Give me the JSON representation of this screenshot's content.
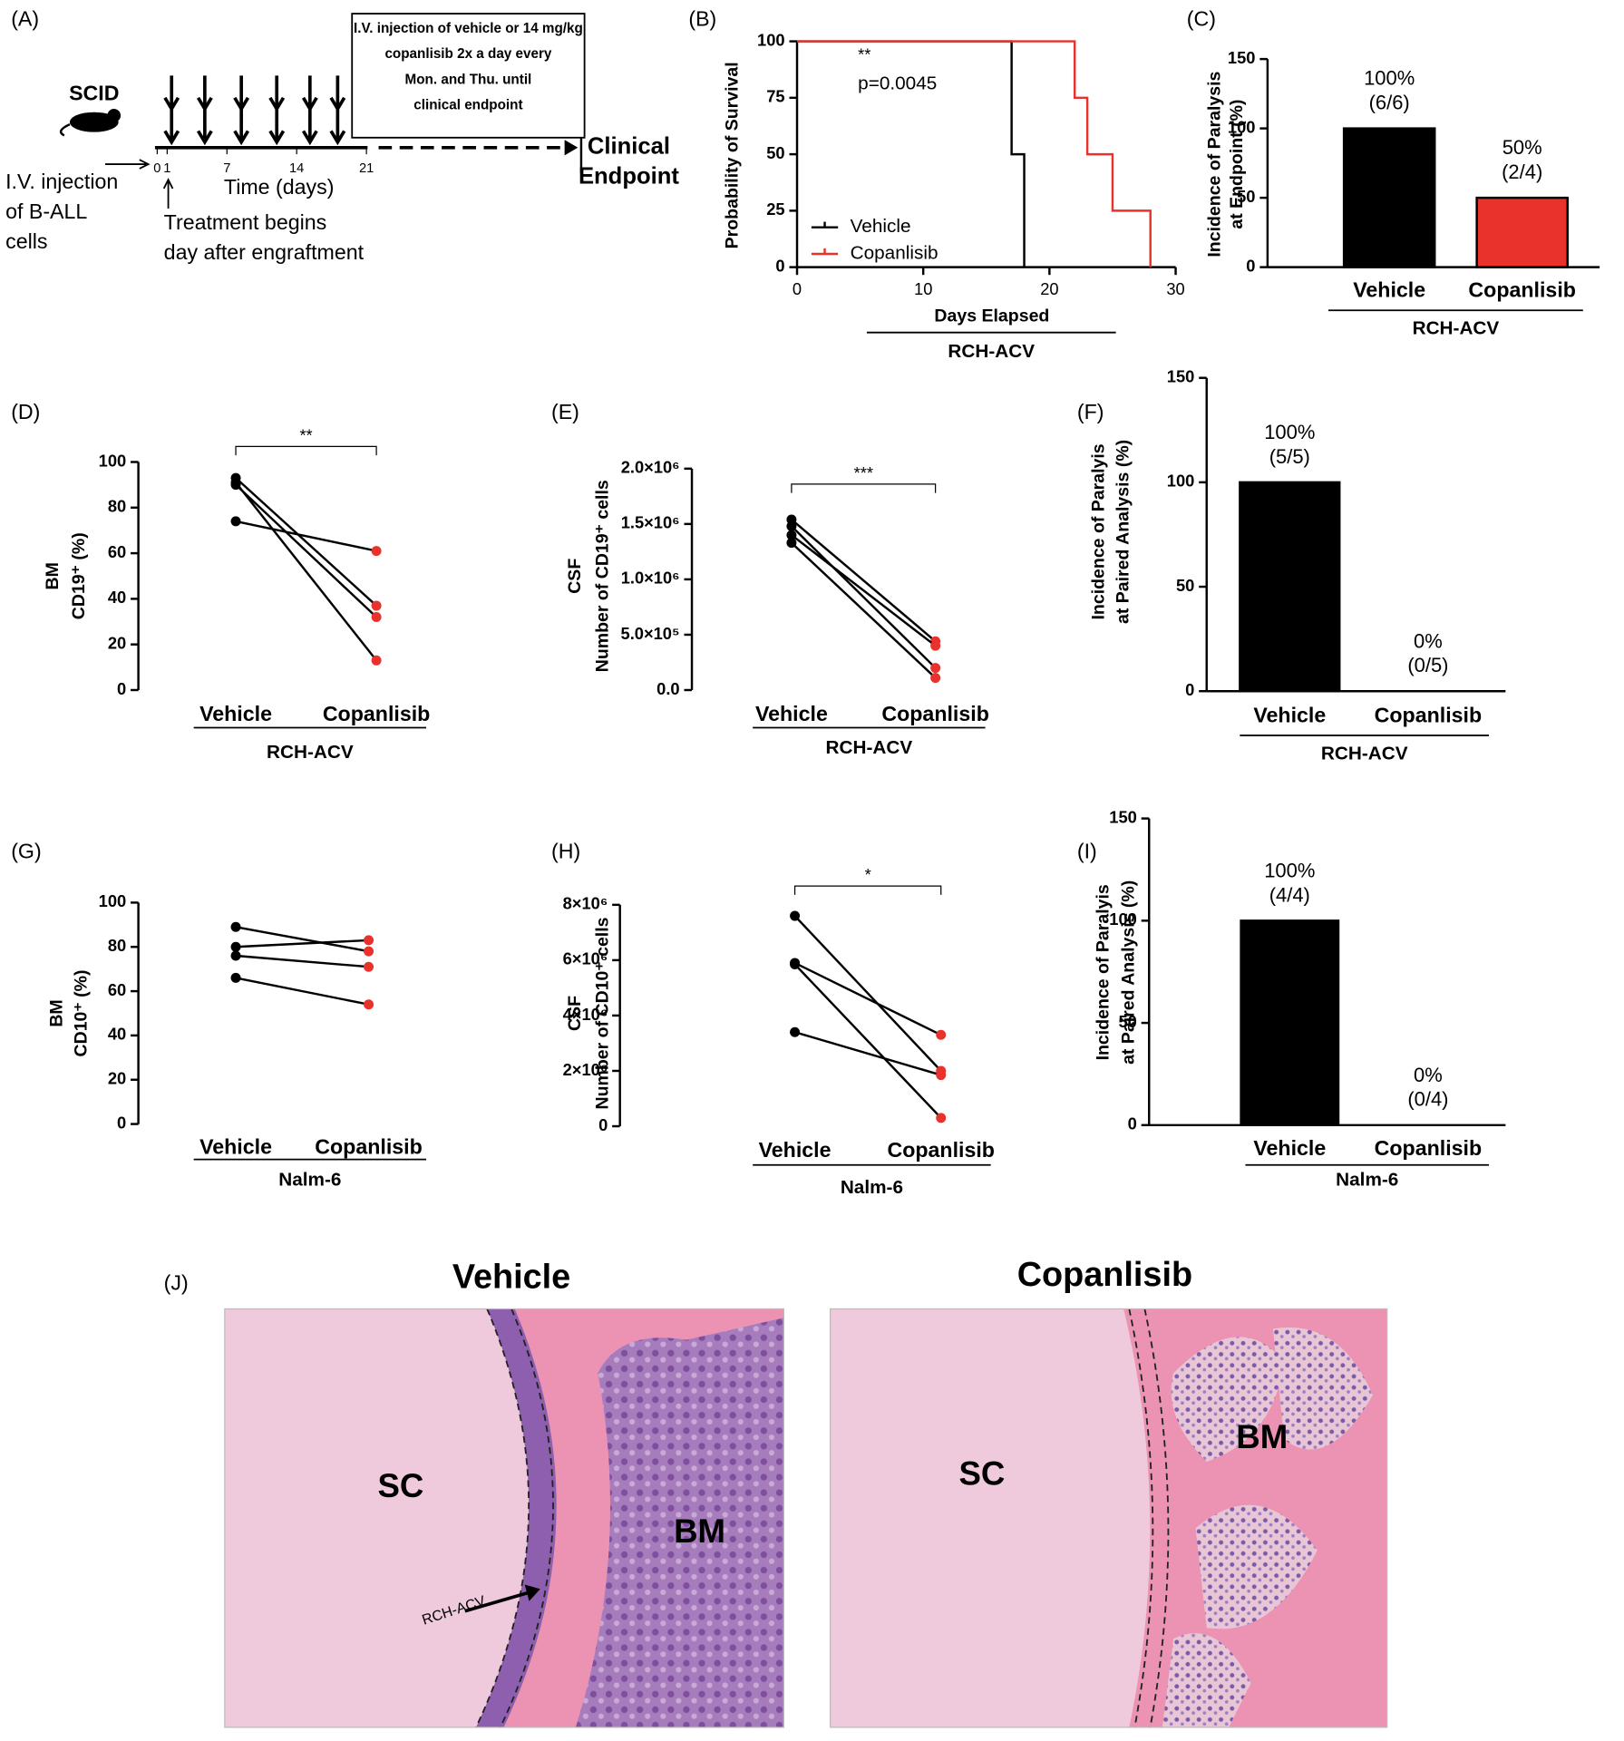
{
  "panel_labels": [
    "(A)",
    "(B)",
    "(C)",
    "(D)",
    "(E)",
    "(F)",
    "(G)",
    "(H)",
    "(I)",
    "(J)"
  ],
  "schematic": {
    "strain": "SCID",
    "injection": [
      "I.V. injection",
      "of B-ALL",
      "cells"
    ],
    "days": [
      0,
      1,
      7,
      14,
      21
    ],
    "time_label": "Time (days)",
    "treatment": [
      "Treatment begins",
      "day after engraftment"
    ],
    "regimen": [
      "I.V. injection of vehicle or 14 mg/kg",
      "copanlisib 2x a day every",
      "Mon. and Thu. until",
      "clinical endpoint"
    ],
    "endpoint": [
      "Clinical",
      "Endpoint"
    ]
  },
  "chart_data": [
    {
      "type": "step",
      "ylabel": "Probability of Survival",
      "xlabel": "Days Elapsed",
      "group": "RCH-ACV",
      "annotations": [
        "**",
        "p=0.0045"
      ],
      "xlim": [
        0,
        30
      ],
      "xticks": [
        0,
        10,
        20,
        30
      ],
      "ylim": [
        0,
        100
      ],
      "yticks": [
        0,
        25,
        50,
        75,
        100
      ],
      "legend": "lower left",
      "series": [
        {
          "name": "Vehicle",
          "color": "#000000",
          "x": [
            0,
            17,
            18
          ],
          "values": [
            100,
            50,
            0
          ]
        },
        {
          "name": "Copanlisib",
          "color": "#e8322b",
          "x": [
            0,
            22,
            23,
            25,
            28
          ],
          "values": [
            100,
            75,
            50,
            25,
            0
          ]
        }
      ]
    },
    {
      "type": "bar",
      "ylabel": [
        "Incidence of Paralysis",
        "at Endpoint (%)"
      ],
      "group": "RCH-ACV",
      "categories": [
        "Vehicle",
        "Copanlisib"
      ],
      "values": [
        100,
        50
      ],
      "value_labels": [
        "100%",
        "50%"
      ],
      "counts": [
        "(6/6)",
        "(2/4)"
      ],
      "colors": [
        "#000000",
        "#e8322b"
      ],
      "ylim": [
        0,
        150
      ],
      "yticks": [
        0,
        50,
        100,
        150
      ]
    },
    {
      "type": "paired",
      "ylabel": [
        "BM",
        "CD19⁺ (%)"
      ],
      "group": "RCH-ACV",
      "significance": "**",
      "categories": [
        "Vehicle",
        "Copanlisib"
      ],
      "point_colors": [
        "#000000",
        "#e8322b"
      ],
      "ylim": [
        0,
        100
      ],
      "yticks": [
        0,
        20,
        40,
        60,
        80,
        100
      ],
      "series": [
        {
          "values": [
            93,
            37
          ]
        },
        {
          "values": [
            91,
            13
          ]
        },
        {
          "values": [
            90,
            32
          ]
        },
        {
          "values": [
            74,
            61
          ]
        }
      ]
    },
    {
      "type": "paired",
      "ylabel": [
        "CSF",
        "Number of CD19⁺ cells"
      ],
      "group": "RCH-ACV",
      "significance": "***",
      "categories": [
        "Vehicle",
        "Copanlisib"
      ],
      "point_colors": [
        "#000000",
        "#e8322b"
      ],
      "ylim": [
        0,
        2000000
      ],
      "yticks": [
        {
          "value": 0,
          "label": "0.0"
        },
        {
          "value": 500000,
          "label": "5.0×10⁵"
        },
        {
          "value": 1000000,
          "label": "1.0×10⁶"
        },
        {
          "value": 1500000,
          "label": "1.5×10⁶"
        },
        {
          "value": 2000000,
          "label": "2.0×10⁶"
        }
      ],
      "series": [
        {
          "values": [
            1540000,
            440000
          ]
        },
        {
          "values": [
            1480000,
            200000
          ]
        },
        {
          "values": [
            1400000,
            400000
          ]
        },
        {
          "values": [
            1330000,
            110000
          ]
        }
      ]
    },
    {
      "type": "bar",
      "ylabel": [
        "Incidence of Paralyis",
        "at Paired Analysis (%)"
      ],
      "group": "RCH-ACV",
      "categories": [
        "Vehicle",
        "Copanlisib"
      ],
      "values": [
        100,
        0
      ],
      "value_labels": [
        "100%",
        "0%"
      ],
      "counts": [
        "(5/5)",
        "(0/5)"
      ],
      "colors": [
        "#000000",
        "#e8322b"
      ],
      "ylim": [
        0,
        150
      ],
      "yticks": [
        0,
        50,
        100,
        150
      ]
    },
    {
      "type": "paired",
      "ylabel": [
        "BM",
        "CD10⁺ (%)"
      ],
      "group": "Nalm-6",
      "categories": [
        "Vehicle",
        "Copanlisib"
      ],
      "point_colors": [
        "#000000",
        "#e8322b"
      ],
      "ylim": [
        0,
        100
      ],
      "yticks": [
        0,
        20,
        40,
        60,
        80,
        100
      ],
      "series": [
        {
          "values": [
            89,
            78
          ]
        },
        {
          "values": [
            80,
            83
          ]
        },
        {
          "values": [
            76,
            71
          ]
        },
        {
          "values": [
            66,
            54
          ]
        }
      ]
    },
    {
      "type": "paired",
      "ylabel": [
        "CSF",
        "Number of CD10⁺ cells"
      ],
      "group": "Nalm-6",
      "significance": "*",
      "categories": [
        "Vehicle",
        "Copanlisib"
      ],
      "point_colors": [
        "#000000",
        "#e8322b"
      ],
      "ylim": [
        0,
        8000000
      ],
      "yticks": [
        0,
        {
          "value": 2000000,
          "label": "2×10⁶"
        },
        {
          "value": 4000000,
          "label": "4×10⁶"
        },
        {
          "value": 6000000,
          "label": "6×10⁶"
        },
        {
          "value": 8000000,
          "label": "8×10⁶"
        }
      ],
      "series": [
        {
          "values": [
            7600000,
            2000000
          ]
        },
        {
          "values": [
            5900000,
            3300000
          ]
        },
        {
          "values": [
            5850000,
            300000
          ]
        },
        {
          "values": [
            3400000,
            1850000
          ]
        }
      ]
    },
    {
      "type": "bar",
      "ylabel": [
        "Incidence of Paralyis",
        "at Paired Analysis (%)"
      ],
      "group": "Nalm-6",
      "categories": [
        "Vehicle",
        "Copanlisib"
      ],
      "values": [
        100,
        0
      ],
      "value_labels": [
        "100%",
        "0%"
      ],
      "counts": [
        "(4/4)",
        "(0/4)"
      ],
      "colors": [
        "#000000",
        "#e8322b"
      ],
      "ylim": [
        0,
        150
      ],
      "yticks": [
        0,
        50,
        100,
        150
      ]
    }
  ],
  "histology": {
    "panels": [
      {
        "title": "Vehicle",
        "labels": [
          "SC",
          "BM",
          "RCH-ACV"
        ]
      },
      {
        "title": "Copanlisib",
        "labels": [
          "SC",
          "BM"
        ]
      }
    ]
  }
}
